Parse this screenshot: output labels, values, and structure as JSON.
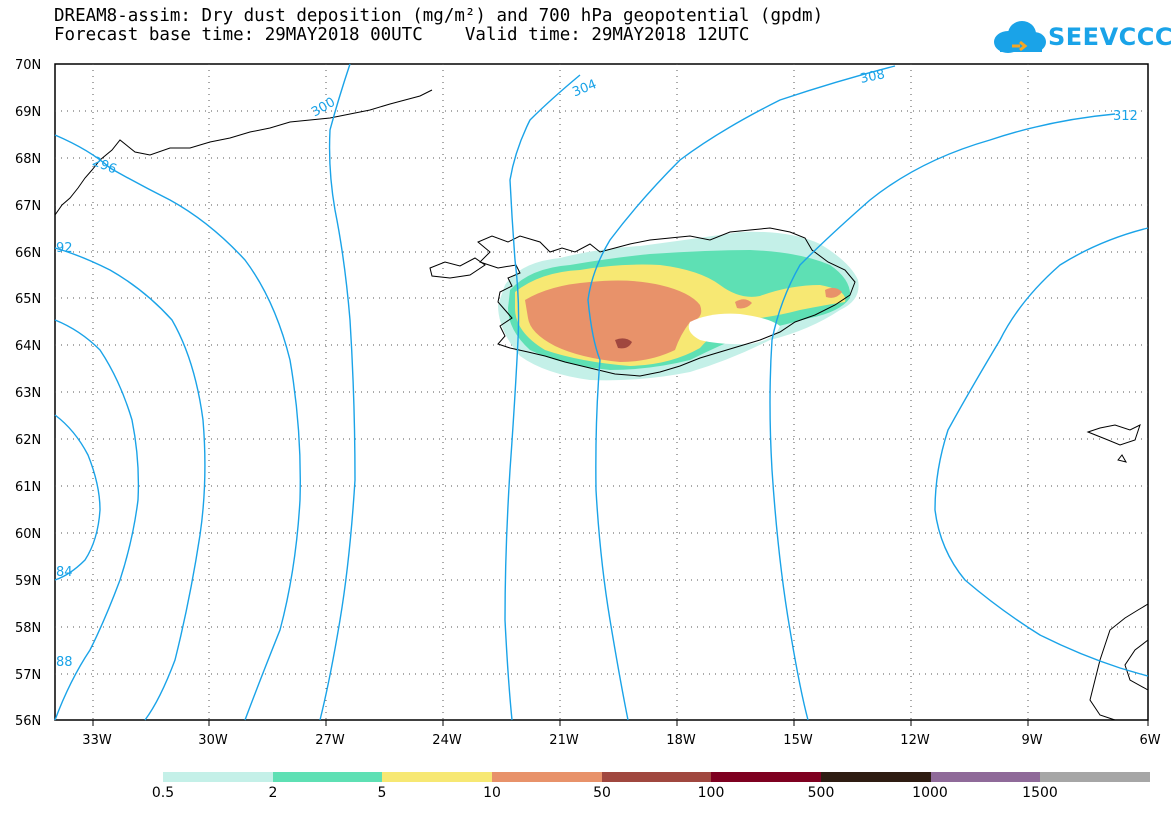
{
  "title": {
    "line1": "DREAM8-assim: Dry dust deposition (mg/m²) and 700 hPa geopotential (gpdm)",
    "line2": "Forecast base time: 29MAY2018 00UTC    Valid time: 29MAY2018 12UTC"
  },
  "logo": {
    "text": "SEEVCCC"
  },
  "map": {
    "lat_labels": [
      "70N",
      "69N",
      "68N",
      "67N",
      "66N",
      "65N",
      "64N",
      "63N",
      "62N",
      "61N",
      "60N",
      "59N",
      "58N",
      "57N",
      "56N"
    ],
    "lon_labels": [
      "33W",
      "30W",
      "27W",
      "24W",
      "21W",
      "18W",
      "15W",
      "12W",
      "9W",
      "6W"
    ],
    "contour_labels": [
      "300",
      "304",
      "308",
      "312",
      "296",
      "92",
      "84",
      "88"
    ],
    "contour_color": "#1aa3e8"
  },
  "legend": {
    "colors": [
      "#c4f0e8",
      "#5ee0b4",
      "#f7e873",
      "#e8926a",
      "#a0473f",
      "#7e0020",
      "#2e1c12",
      "#8f6a99",
      "#a6a6a6"
    ],
    "labels": [
      "0.5",
      "2",
      "5",
      "10",
      "50",
      "100",
      "500",
      "1000",
      "1500"
    ]
  }
}
